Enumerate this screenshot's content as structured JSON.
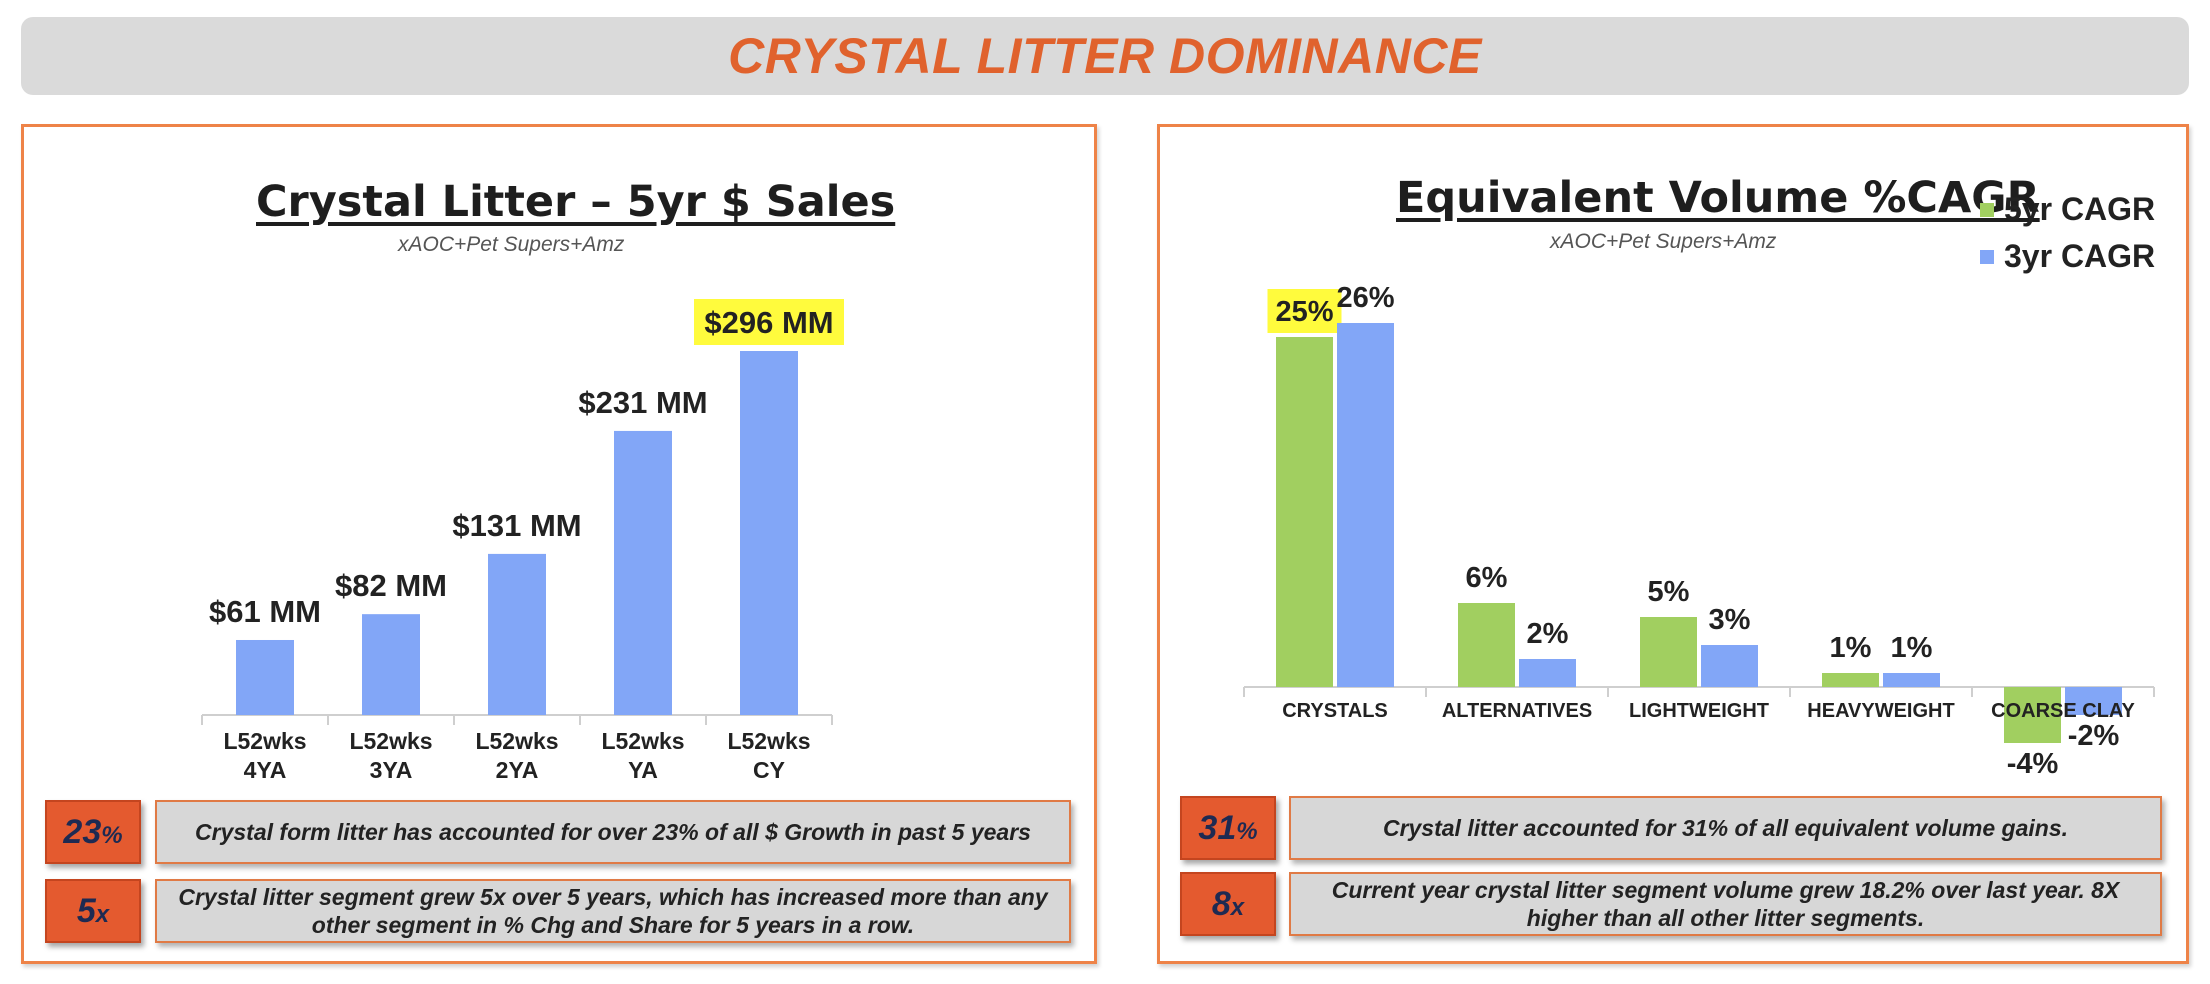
{
  "header": {
    "title": "CRYSTAL LITTER DOMINANCE"
  },
  "colors": {
    "accent": "#e0622d",
    "bar_blue": "#82a6f7",
    "bar_green": "#a1cf60",
    "highlight": "#fffb3d"
  },
  "left_panel": {
    "subtitle": "xAOC+Pet Supers+Amz",
    "callouts": [
      {
        "number": "23",
        "unit": "%",
        "text": "Crystal form litter has accounted for over 23% of all $ Growth in past 5 years"
      },
      {
        "number": "5",
        "unit": "x",
        "text": "Crystal litter segment grew 5x over 5 years, which has increased more than any other segment in % Chg and Share for 5 years in a row."
      }
    ]
  },
  "right_panel": {
    "subtitle": "xAOC+Pet Supers+Amz",
    "callouts": [
      {
        "number": "31",
        "unit": "%",
        "text": "Crystal litter accounted for 31% of all equivalent volume gains."
      },
      {
        "number": "8",
        "unit": "x",
        "text": "Current year crystal litter segment volume grew 18.2% over last year. 8X higher than all other litter segments."
      }
    ]
  },
  "chart_data": [
    {
      "type": "bar",
      "title": "Crystal Litter – 5yr $ Sales",
      "categories": [
        [
          "L52wks",
          "4YA"
        ],
        [
          "L52wks",
          "3YA"
        ],
        [
          "L52wks",
          "2YA"
        ],
        [
          "L52wks",
          "YA"
        ],
        [
          "L52wks",
          "CY"
        ]
      ],
      "values": [
        61,
        82,
        131,
        231,
        296
      ],
      "value_labels": [
        "$61 MM",
        "$82 MM",
        "$131 MM",
        "$231 MM",
        "$296 MM"
      ],
      "highlighted_label_index": 4,
      "ylim": [
        0,
        296
      ],
      "grid": false
    },
    {
      "type": "bar",
      "title": "Equivalent Volume %CAGR",
      "categories": [
        "CRYSTALS",
        "ALTERNATIVES",
        "LIGHTWEIGHT",
        "HEAVYWEIGHT",
        "COARSE CLAY"
      ],
      "series": [
        {
          "name": "5yr CAGR",
          "values": [
            25,
            6,
            5,
            1,
            -4
          ],
          "labels": [
            "25%",
            "6%",
            "5%",
            "1%",
            "-4%"
          ],
          "color": "#a1cf60"
        },
        {
          "name": "3yr CAGR",
          "values": [
            26,
            2,
            3,
            1,
            -2
          ],
          "labels": [
            "26%",
            "2%",
            "3%",
            "1%",
            "-2%"
          ],
          "color": "#82a6f7"
        }
      ],
      "highlighted_label": {
        "series": 0,
        "index": 0
      },
      "legend": "top-right",
      "ylim": [
        -4,
        26
      ],
      "grid": false
    }
  ]
}
